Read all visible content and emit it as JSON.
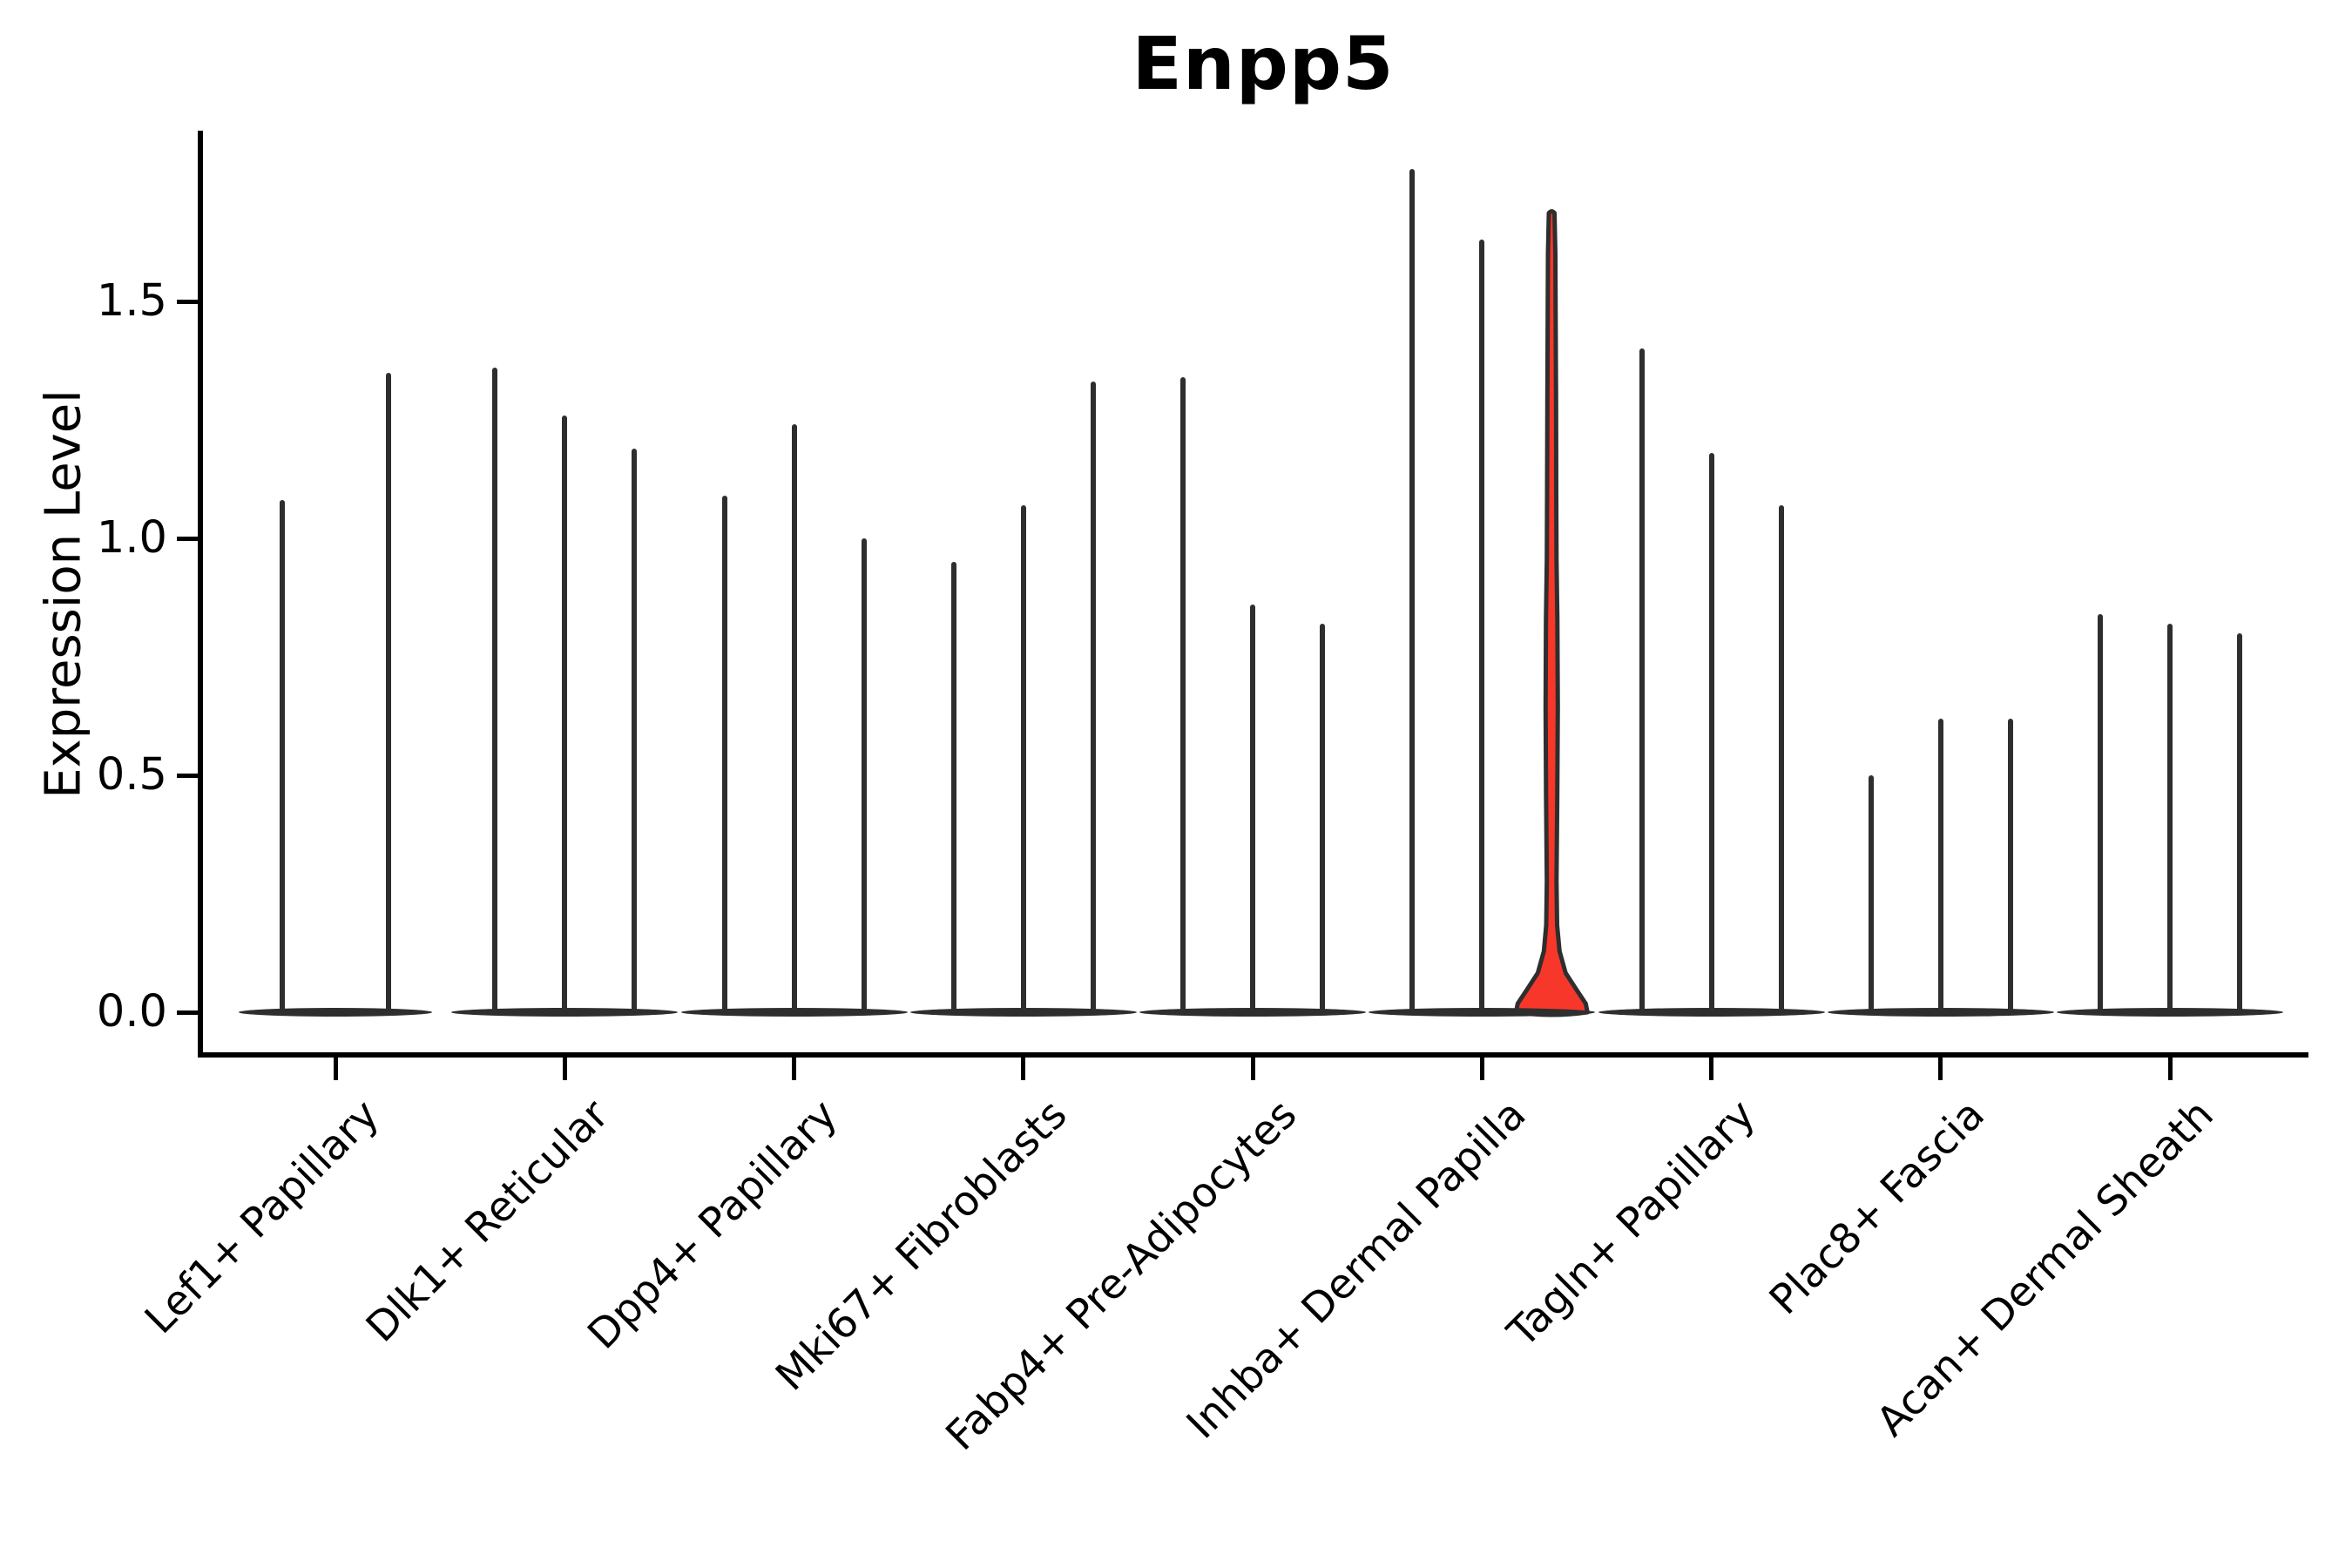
{
  "title": "Enpp5",
  "y_axis": {
    "label": "Expression Level",
    "tick_labels": [
      "0.0",
      "0.5",
      "1.0",
      "1.5"
    ]
  },
  "colors": {
    "violin_line": "#2e2e2e",
    "spine": "#000000",
    "highlight_fill": "#f8372b",
    "text": "#000000",
    "background": "#ffffff"
  },
  "chart_data": {
    "type": "violin",
    "title": "Enpp5",
    "xlabel": "",
    "ylabel": "Expression Level",
    "ylim": [
      0,
      1.86
    ],
    "yticks": [
      0,
      0.5,
      1.0,
      1.5
    ],
    "ytick_labels": [
      "0.0",
      "0.5",
      "1.0",
      "1.5"
    ],
    "grid": false,
    "legend": "none",
    "categories": [
      "Lef1+ Papillary",
      "Dlk1+ Reticular",
      "Dpp4+ Papillary",
      "Mki67+ Fibroblasts",
      "Fabp4+ Pre-Adipocytes",
      "Inhba+ Dermal Papilla",
      "Tagln+ Papillary",
      "Plac8+ Fascia",
      "Acan+ Dermal Sheath"
    ],
    "series": [
      {
        "category": "Lef1+ Papillary",
        "violins": [
          {
            "peak": 1.08
          },
          {
            "peak": 1.35
          }
        ]
      },
      {
        "category": "Dlk1+ Reticular",
        "violins": [
          {
            "peak": 1.36
          },
          {
            "peak": 1.26
          },
          {
            "peak": 1.19
          }
        ]
      },
      {
        "category": "Dpp4+ Papillary",
        "violins": [
          {
            "peak": 1.09
          },
          {
            "peak": 1.24
          },
          {
            "peak": 1.0
          }
        ]
      },
      {
        "category": "Mki67+ Fibroblasts",
        "violins": [
          {
            "peak": 0.95
          },
          {
            "peak": 1.07
          },
          {
            "peak": 1.33
          }
        ]
      },
      {
        "category": "Fabp4+ Pre-Adipocytes",
        "violins": [
          {
            "peak": 1.34
          },
          {
            "peak": 0.86
          },
          {
            "peak": 0.82
          }
        ]
      },
      {
        "category": "Inhba+ Dermal Papilla",
        "violins": [
          {
            "peak": 1.78
          },
          {
            "peak": 1.63
          },
          {
            "peak": 1.69,
            "highlighted": true
          }
        ]
      },
      {
        "category": "Tagln+ Papillary",
        "violins": [
          {
            "peak": 1.4
          },
          {
            "peak": 1.18
          },
          {
            "peak": 1.07
          }
        ]
      },
      {
        "category": "Plac8+ Fascia",
        "violins": [
          {
            "peak": 0.5
          },
          {
            "peak": 0.62
          },
          {
            "peak": 0.62
          }
        ]
      },
      {
        "category": "Acan+ Dermal Sheath",
        "violins": [
          {
            "peak": 0.84
          },
          {
            "peak": 0.82
          },
          {
            "peak": 0.8
          }
        ]
      }
    ],
    "highlight": {
      "category": "Inhba+ Dermal Papilla",
      "violin_index": 2,
      "fill_color": "#f8372b",
      "peak": 1.69,
      "base_bulge_max_expression": 0.18
    }
  }
}
